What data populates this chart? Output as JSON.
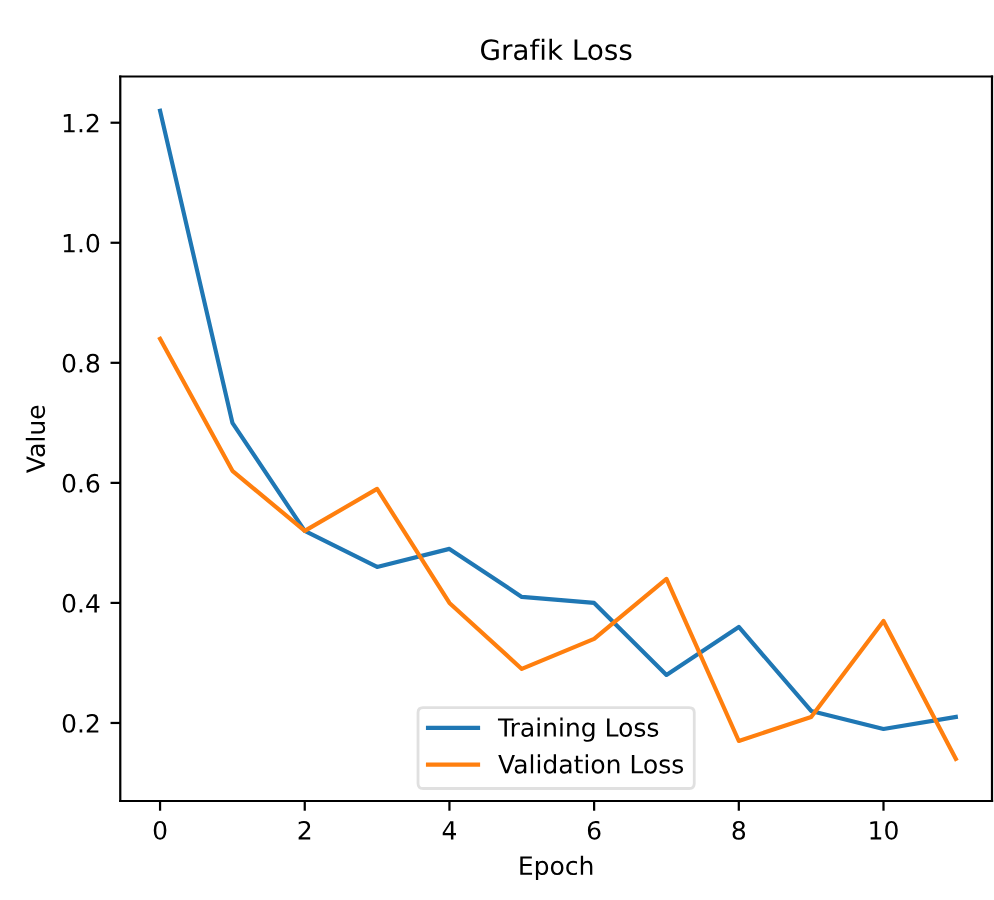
{
  "chart_data": {
    "type": "line",
    "title": "Grafik Loss",
    "xlabel": "Epoch",
    "ylabel": "Value",
    "x": [
      0,
      1,
      2,
      3,
      4,
      5,
      6,
      7,
      8,
      9,
      10,
      11
    ],
    "series": [
      {
        "name": "Training Loss",
        "color": "#1f77b4",
        "values": [
          1.22,
          0.7,
          0.52,
          0.46,
          0.49,
          0.41,
          0.4,
          0.28,
          0.36,
          0.22,
          0.19,
          0.21
        ]
      },
      {
        "name": "Validation Loss",
        "color": "#ff7f0e",
        "values": [
          0.84,
          0.62,
          0.52,
          0.59,
          0.4,
          0.29,
          0.34,
          0.44,
          0.17,
          0.21,
          0.37,
          0.14
        ]
      }
    ],
    "xlim": [
      -0.55,
      11.5
    ],
    "ylim": [
      0.07,
      1.277
    ],
    "xticks": [
      0,
      2,
      4,
      6,
      8,
      10
    ],
    "yticks": [
      0.2,
      0.4,
      0.6,
      0.8,
      {
        "value": 1,
        "label": "1.0"
      },
      1.2
    ],
    "legend": "bottom",
    "grid": false
  }
}
